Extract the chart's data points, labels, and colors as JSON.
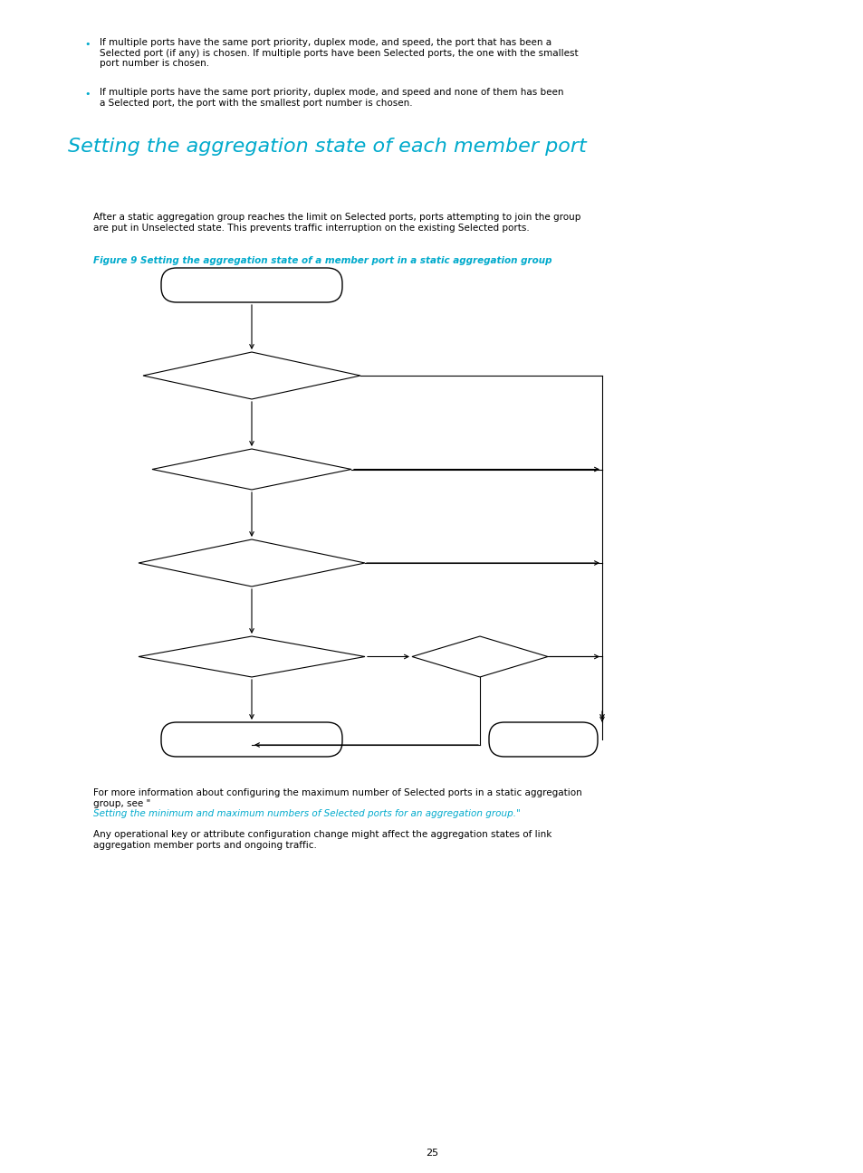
{
  "background_color": "#ffffff",
  "page_width": 9.54,
  "page_height": 12.96,
  "bullet_color": "#000000",
  "heading_color": "#00aacc",
  "body_color": "#000000",
  "link_color": "#00aacc",
  "heading": "Setting the aggregation state of each member port",
  "bullet1": "If multiple ports have the same port priority, duplex mode, and speed, the port that has been a\nSelected port (if any) is chosen. If multiple ports have been Selected ports, the one with the smallest\nport number is chosen.",
  "bullet2": "If multiple ports have the same port priority, duplex mode, and speed and none of them has been\na Selected port, the port with the smallest port number is chosen.",
  "para1": "After a static aggregation group reaches the limit on Selected ports, ports attempting to join the group\nare put in Unselected state. This prevents traffic interruption on the existing Selected ports.",
  "fig_caption": "Figure 9 Setting the aggregation state of a member port in a static aggregation group",
  "para2_prefix": "For more information about configuring the maximum number of Selected ports in a static aggregation\ngroup, see “",
  "para2_link": "Setting the minimum and maximum numbers of Selected ports for an aggregation group",
  "para2_suffix": ".”",
  "para3": "Any operational key or attribute configuration change might affect the aggregation states of link\naggregation member ports and ongoing traffic.",
  "page_number": "25"
}
